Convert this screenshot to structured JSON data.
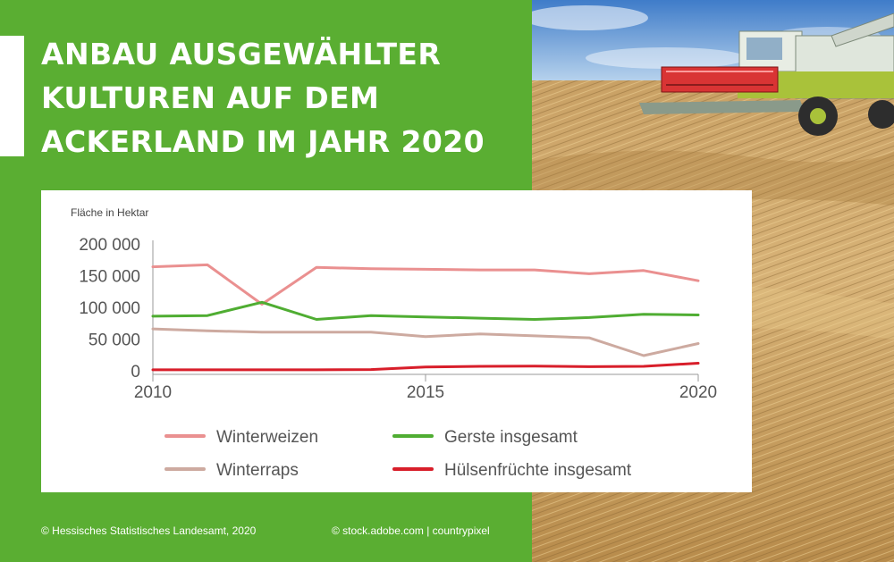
{
  "title_lines": [
    "ANBAU AUSGEWÄHLTER",
    "KULTUREN AUF DEM",
    "ACKERLAND IM JAHR 2020"
  ],
  "footer": {
    "source": "© Hessisches Statistisches Landesamt, 2020",
    "photo_credit": "© stock.adobe.com | countrypixel"
  },
  "colors": {
    "background_green": "#5aae32",
    "winterweizen": "#ea9090",
    "gerste": "#4fad32",
    "winterraps": "#cdaaa0",
    "huelsenfruechte": "#d81e2a",
    "axis_text": "#555555"
  },
  "chart_data": {
    "type": "line",
    "ylabel": "Fläche in Hektar",
    "ylim": [
      0,
      200000
    ],
    "yticks": [
      0,
      50000,
      100000,
      150000,
      200000
    ],
    "ytick_labels": [
      "0",
      "50 000",
      "100 000",
      "150 000",
      "200 000"
    ],
    "xlim": [
      2010,
      2020
    ],
    "xticks": [
      2010,
      2015,
      2020
    ],
    "xtick_labels": [
      "2010",
      "2015",
      "2020"
    ],
    "x": [
      2010,
      2011,
      2012,
      2013,
      2014,
      2015,
      2016,
      2017,
      2018,
      2019,
      2020
    ],
    "legend_position": "bottom",
    "grid": false,
    "series": [
      {
        "name": "Winterweizen",
        "color": "#ea9090",
        "values": [
          164000,
          167000,
          105000,
          163000,
          161000,
          160000,
          159000,
          159000,
          153000,
          158000,
          142000
        ]
      },
      {
        "name": "Gerste insgesamt",
        "color": "#4fad32",
        "values": [
          86000,
          87000,
          108000,
          81000,
          87000,
          85000,
          83000,
          81000,
          84000,
          89000,
          88000
        ]
      },
      {
        "name": "Winterraps",
        "color": "#cdaaa0",
        "values": [
          66000,
          63000,
          61000,
          61000,
          61000,
          54000,
          58000,
          55000,
          52000,
          24000,
          43000
        ]
      },
      {
        "name": "Hülsenfrüchte insgesamt",
        "color": "#d81e2a",
        "values": [
          1500,
          1500,
          1500,
          1500,
          2000,
          6000,
          7000,
          7500,
          6500,
          7000,
          12000
        ]
      }
    ]
  }
}
